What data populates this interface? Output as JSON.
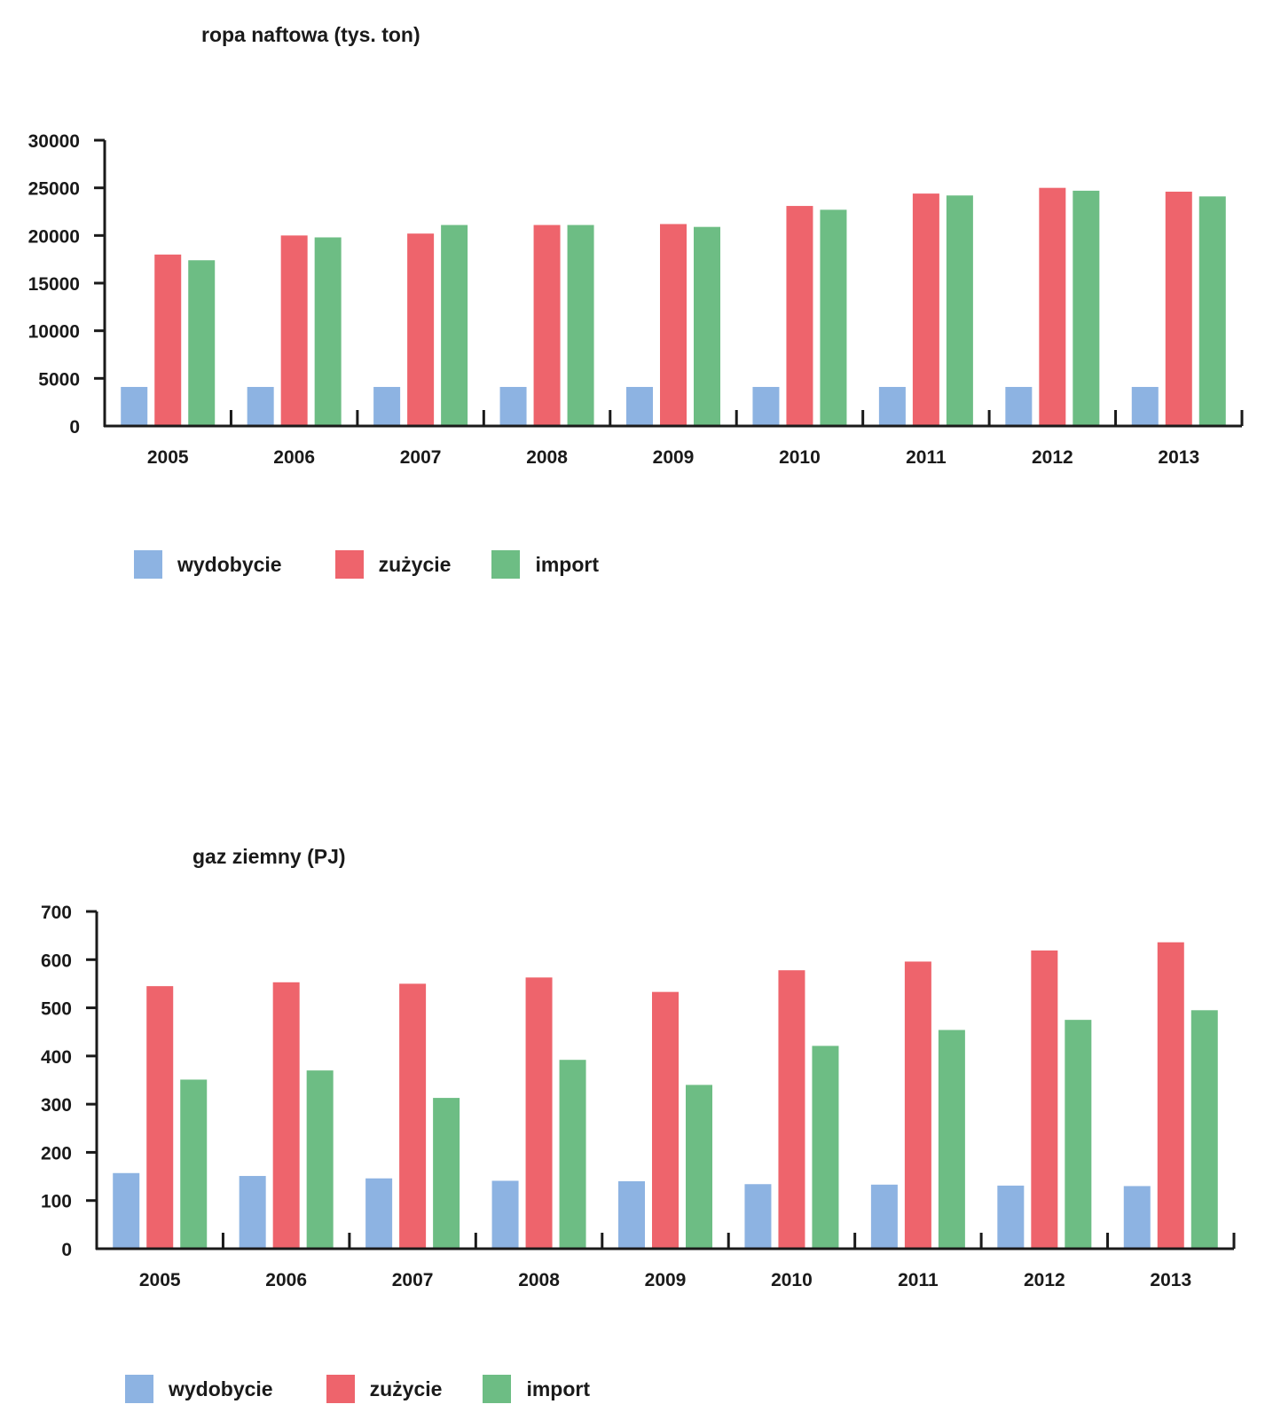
{
  "legend": [
    {
      "label": "wydobycie",
      "color": "#8db3e2"
    },
    {
      "label": "zużycie",
      "color": "#ee646c"
    },
    {
      "label": "import",
      "color": "#6dbd84"
    }
  ],
  "chart_data": [
    {
      "type": "bar",
      "title": "ropa naftowa (tys. ton)",
      "categories": [
        "2005",
        "2006",
        "2007",
        "2008",
        "2009",
        "2010",
        "2011",
        "2012",
        "2013"
      ],
      "yticks": [
        "0",
        "5000",
        "10000",
        "15000",
        "20000",
        "25000",
        "30000"
      ],
      "ylim": [
        0,
        30000
      ],
      "legend_position": "bottom-left",
      "grid": false,
      "series": [
        {
          "name": "wydobycie",
          "color": "#8db3e2",
          "values": [
            4100,
            4100,
            4100,
            4100,
            4100,
            4100,
            4100,
            4100,
            4100
          ]
        },
        {
          "name": "zużycie",
          "color": "#ee646c",
          "values": [
            18000,
            20000,
            20200,
            21100,
            21200,
            23100,
            24400,
            25000,
            24600
          ]
        },
        {
          "name": "import",
          "color": "#6dbd84",
          "values": [
            17400,
            19800,
            21100,
            21100,
            20900,
            22700,
            24200,
            24700,
            24100
          ]
        }
      ]
    },
    {
      "type": "bar",
      "title": "gaz ziemny (PJ)",
      "categories": [
        "2005",
        "2006",
        "2007",
        "2008",
        "2009",
        "2010",
        "2011",
        "2012",
        "2013"
      ],
      "yticks": [
        "0",
        "100",
        "200",
        "300",
        "400",
        "500",
        "600",
        "700"
      ],
      "ylim": [
        0,
        700
      ],
      "legend_position": "bottom-left",
      "grid": false,
      "series": [
        {
          "name": "wydobycie",
          "color": "#8db3e2",
          "values": [
            157,
            151,
            146,
            141,
            140,
            134,
            133,
            131,
            130
          ]
        },
        {
          "name": "zużycie",
          "color": "#ee646c",
          "values": [
            545,
            553,
            550,
            563,
            533,
            578,
            596,
            619,
            636
          ]
        },
        {
          "name": "import",
          "color": "#6dbd84",
          "values": [
            351,
            370,
            313,
            392,
            340,
            421,
            454,
            475,
            495
          ]
        }
      ]
    }
  ]
}
